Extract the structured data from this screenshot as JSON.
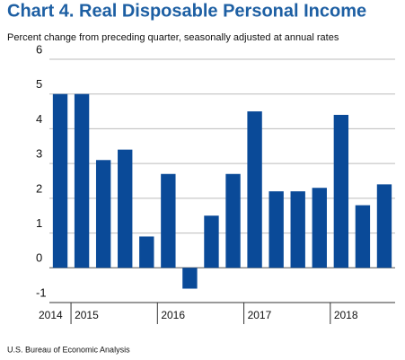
{
  "chart_data": {
    "type": "bar",
    "title": "Chart 4. Real Disposable Personal Income",
    "subtitle": "Percent change from preceding quarter, seasonally adjusted at annual rates",
    "source": "U.S. Bureau of Economic Analysis",
    "categories": [
      null,
      null,
      null,
      null,
      null,
      null,
      null,
      null,
      null,
      null,
      null,
      null,
      null,
      null,
      null,
      null
    ],
    "values": [
      5.0,
      5.0,
      3.1,
      3.4,
      0.9,
      2.7,
      -0.6,
      1.5,
      2.7,
      4.5,
      2.2,
      2.2,
      2.3,
      4.4,
      1.8,
      2.4
    ],
    "groups": [
      {
        "label": "2014",
        "count": 1
      },
      {
        "label": "2015",
        "count": 4
      },
      {
        "label": "2016",
        "count": 4
      },
      {
        "label": "2017",
        "count": 4
      },
      {
        "label": "2018",
        "count": 3
      }
    ],
    "color": "#0a4a98",
    "ylim": [
      -1,
      6
    ],
    "yticks": [
      -1,
      0,
      1,
      2,
      3,
      4,
      5,
      6
    ],
    "grid": true
  }
}
